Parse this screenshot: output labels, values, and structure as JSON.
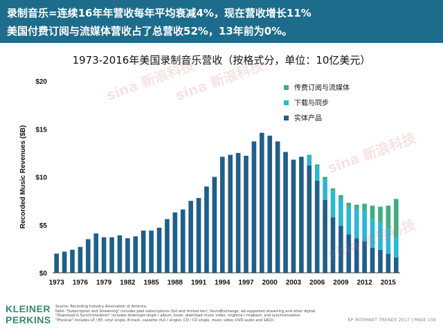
{
  "header": {
    "line1": "录制音乐=连续16年年营收每年平均衰减4%，现在营收增长11%",
    "line2": "美国付费订阅与流媒体营收占了总营收52%，13年前为0%。"
  },
  "watermark": "sina 新浪科技",
  "footer": {
    "logo_line1": "KLEINER",
    "logo_line2": "PERKINS",
    "notes": [
      "Source: Recording Industry Association of America.",
      "Note: \"Subscription and Streaming\" includes paid subscriptions (full and limited tier), SoundExchange, ad-supported streaming and other digital.",
      "\"Download & Synchronization\" includes download single / album, kiosk, download music video, ringtone / ringback, and synchronization.",
      "\"Physical\" includes LP / EP, vinyl single, 8-track, cassette (full / single), CD / CD single, music video, DVD audio and SACD."
    ],
    "page": "KP INTERNET TRENDS 2017  |  PAGE 156"
  },
  "colors": {
    "header_bg": "#1d6c8c",
    "physical": "#1f5f8b",
    "download": "#2bb7d6",
    "streaming": "#3fae7e"
  },
  "chart_data": {
    "type": "bar",
    "stacked": true,
    "title": "1973-2016年美国录制音乐营收（按格式分，单位：10亿美元）",
    "ylabel": "Recorded Music Revenues ($B)",
    "ylim": [
      0,
      20
    ],
    "yticks": [
      0,
      5,
      10,
      15,
      20
    ],
    "ytick_labels": [
      "$0",
      "$5",
      "$10",
      "$15",
      "$20"
    ],
    "xtick_labels": [
      "1973",
      "1976",
      "1979",
      "1982",
      "1985",
      "1988",
      "1991",
      "1994",
      "1997",
      "2000",
      "2003",
      "2006",
      "2009",
      "2012",
      "2015"
    ],
    "legend_position": "top-right",
    "categories": [
      1973,
      1974,
      1975,
      1976,
      1977,
      1978,
      1979,
      1980,
      1981,
      1982,
      1983,
      1984,
      1985,
      1986,
      1987,
      1988,
      1989,
      1990,
      1991,
      1992,
      1993,
      1994,
      1995,
      1996,
      1997,
      1998,
      1999,
      2000,
      2001,
      2002,
      2003,
      2004,
      2005,
      2006,
      2007,
      2008,
      2009,
      2010,
      2011,
      2012,
      2013,
      2014,
      2015,
      2016
    ],
    "series": [
      {
        "name": "实体产品",
        "color": "#1f5f8b",
        "values": [
          2.0,
          2.2,
          2.4,
          2.7,
          3.5,
          4.1,
          3.7,
          3.7,
          3.9,
          3.6,
          3.8,
          4.4,
          4.4,
          4.7,
          5.6,
          6.3,
          6.6,
          7.5,
          7.8,
          9.0,
          10.0,
          12.1,
          12.3,
          12.5,
          12.2,
          13.7,
          14.6,
          14.3,
          13.7,
          12.6,
          11.8,
          12.1,
          11.2,
          9.6,
          7.6,
          5.8,
          4.9,
          4.0,
          3.6,
          3.3,
          2.6,
          2.4,
          2.0,
          1.6
        ]
      },
      {
        "name": "下载与同步",
        "color": "#2bb7d6",
        "values": [
          0,
          0,
          0,
          0,
          0,
          0,
          0,
          0,
          0,
          0,
          0,
          0,
          0,
          0,
          0,
          0,
          0,
          0,
          0,
          0,
          0,
          0,
          0,
          0,
          0,
          0,
          0,
          0,
          0,
          0,
          0,
          0,
          1.0,
          1.5,
          2.1,
          2.7,
          2.9,
          2.9,
          3.0,
          3.2,
          3.1,
          2.9,
          2.6,
          2.1
        ]
      },
      {
        "name": "传费订阅与流媒体",
        "color": "#3fae7e",
        "values": [
          0,
          0,
          0,
          0,
          0,
          0,
          0,
          0,
          0,
          0,
          0,
          0,
          0,
          0,
          0,
          0,
          0,
          0,
          0,
          0,
          0,
          0,
          0,
          0,
          0,
          0,
          0,
          0,
          0,
          0,
          0,
          0,
          0.1,
          0.2,
          0.3,
          0.3,
          0.3,
          0.4,
          0.5,
          0.7,
          1.3,
          1.6,
          2.4,
          4.0
        ]
      }
    ]
  }
}
